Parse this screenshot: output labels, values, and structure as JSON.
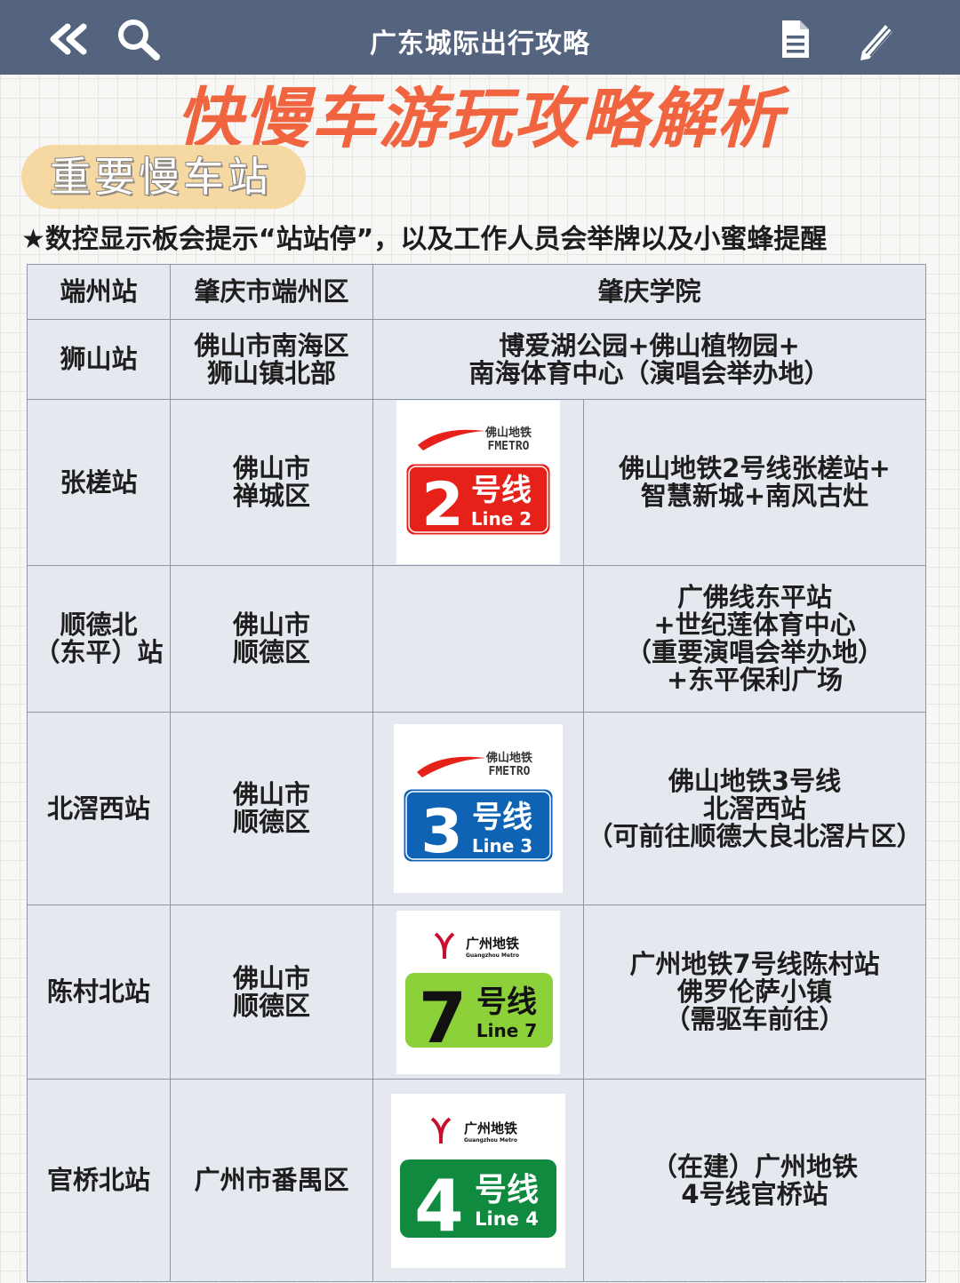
{
  "header": {
    "title": "广东城际出行攻略",
    "back_icon": "double-chevron-left-icon",
    "search_icon": "search-icon",
    "document_icon": "document-icon",
    "edit_icon": "pencil-icon"
  },
  "main_title": "快慢车游玩攻略解析",
  "section_label": "重要慢车站",
  "note": "★数控显示板会提示“站站停”，以及工作人员会举牌以及小蜜蜂提醒",
  "colors": {
    "header_bg": "#54637e",
    "title_orange": "#f0643f",
    "pill_bg": "#f6d8a3",
    "table_bg": "#e5e8ef",
    "line2_red": "#e6211a",
    "line3_blue": "#0f63b5",
    "line7_green": "#8cd03a",
    "line4_green": "#0f8a3f"
  },
  "rows": [
    {
      "station": "端州站",
      "district": "肇庆市端州区",
      "info": "肇庆学院"
    },
    {
      "station": "狮山站",
      "district": "佛山市南海区\n狮山镇北部",
      "info": "博爱湖公园+佛山植物园+\n南海体育中心（演唱会举办地）"
    },
    {
      "station": "张槎站",
      "district": "佛山市\n禅城区",
      "info": "佛山地铁2号线张槎站+\n智慧新城+南风古灶",
      "badge": {
        "operator_cn": "佛山地铁",
        "operator_en": "FMETRO",
        "number": "2",
        "label": "号线",
        "line_en": "Line 2",
        "color": "#e6211a"
      }
    },
    {
      "station": "顺德北\n（东平）站",
      "district": "佛山市\n顺德区",
      "info": "广佛线东平站\n+世纪莲体育中心\n（重要演唱会举办地）\n+东平保利广场"
    },
    {
      "station": "北滘西站",
      "district": "佛山市\n顺德区",
      "info": "佛山地铁3号线\n北滘西站\n（可前往顺德大良北滘片区）",
      "badge": {
        "operator_cn": "佛山地铁",
        "operator_en": "FMETRO",
        "number": "3",
        "label": "号线",
        "line_en": "Line 3",
        "color": "#0f63b5"
      }
    },
    {
      "station": "陈村北站",
      "district": "佛山市\n顺德区",
      "info": "广州地铁7号线陈村站\n佛罗伦萨小镇\n（需驱车前往）",
      "badge": {
        "operator_cn": "广州地铁",
        "operator_en": "Guangzhou Metro",
        "number": "7",
        "label": "号线",
        "line_en": "Line 7",
        "color": "#8cd03a"
      }
    },
    {
      "station": "官桥北站",
      "district": "广州市番禺区",
      "info": "（在建）广州地铁\n4号线官桥站",
      "badge": {
        "operator_cn": "广州地铁",
        "operator_en": "Guangzhou Metro",
        "number": "4",
        "label": "号线",
        "line_en": "Line 4",
        "color": "#0f8a3f"
      }
    }
  ]
}
